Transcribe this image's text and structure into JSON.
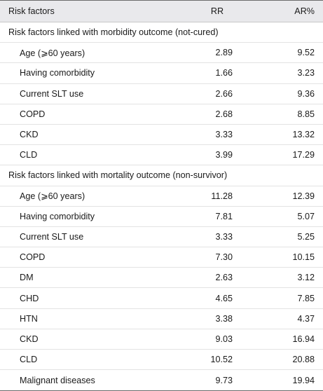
{
  "header": {
    "col1": "Risk factors",
    "col2": "RR",
    "col3": "AR%"
  },
  "sections": [
    {
      "title": "Risk factors linked with morbidity outcome (not-cured)",
      "rows": [
        {
          "factor": "Age (⩾60 years)",
          "rr": "2.89",
          "ar": "9.52"
        },
        {
          "factor": "Having comorbidity",
          "rr": "1.66",
          "ar": "3.23"
        },
        {
          "factor": "Current SLT use",
          "rr": "2.66",
          "ar": "9.36"
        },
        {
          "factor": "COPD",
          "rr": "2.68",
          "ar": "8.85"
        },
        {
          "factor": "CKD",
          "rr": "3.33",
          "ar": "13.32"
        },
        {
          "factor": "CLD",
          "rr": "3.99",
          "ar": "17.29"
        }
      ]
    },
    {
      "title": "Risk factors linked with mortality outcome (non-survivor)",
      "rows": [
        {
          "factor": "Age (⩾60 years)",
          "rr": "11.28",
          "ar": "12.39"
        },
        {
          "factor": "Having comorbidity",
          "rr": "7.81",
          "ar": "5.07"
        },
        {
          "factor": "Current SLT use",
          "rr": "3.33",
          "ar": "5.25"
        },
        {
          "factor": "COPD",
          "rr": "7.30",
          "ar": "10.15"
        },
        {
          "factor": "DM",
          "rr": "2.63",
          "ar": "3.12"
        },
        {
          "factor": "CHD",
          "rr": "4.65",
          "ar": "7.85"
        },
        {
          "factor": "HTN",
          "rr": "3.38",
          "ar": "4.37"
        },
        {
          "factor": "CKD",
          "rr": "9.03",
          "ar": "16.94"
        },
        {
          "factor": "CLD",
          "rr": "10.52",
          "ar": "20.88"
        },
        {
          "factor": "Malignant diseases",
          "rr": "9.73",
          "ar": "19.94"
        }
      ]
    }
  ]
}
